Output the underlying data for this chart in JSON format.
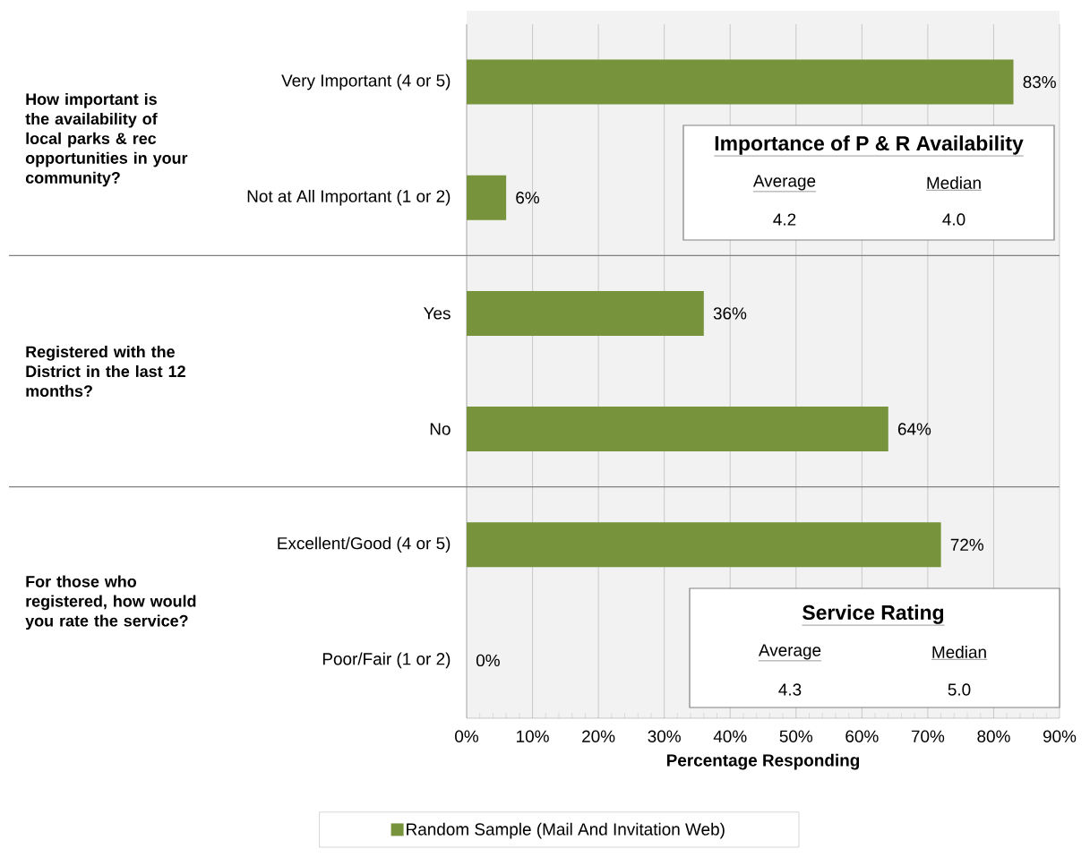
{
  "chart_data": {
    "type": "bar",
    "orientation": "horizontal",
    "categories": [
      "Very Important  (4 or 5)",
      "Not at All Important  (1 or 2)",
      "Yes",
      "No",
      "Excellent/Good (4 or 5)",
      "Poor/Fair (1 or 2)"
    ],
    "series": [
      {
        "name": "Random Sample  (Mail And Invitation  Web)",
        "color": "#77933c",
        "values": [
          83,
          6,
          36,
          64,
          72,
          0
        ],
        "value_labels": [
          "83%",
          "6%",
          "36%",
          "64%",
          "72%",
          "0%"
        ]
      }
    ],
    "xlim": [
      0,
      90
    ],
    "xticks": [
      {
        "value": 0,
        "label": "0%"
      },
      {
        "value": 10,
        "label": "10%"
      },
      {
        "value": 20,
        "label": "20%"
      },
      {
        "value": 30,
        "label": "30%"
      },
      {
        "value": 40,
        "label": "40%"
      },
      {
        "value": 50,
        "label": "50%"
      },
      {
        "value": 60,
        "label": "60%"
      },
      {
        "value": 70,
        "label": "70%"
      },
      {
        "value": 80,
        "label": "80%"
      },
      {
        "value": 90,
        "label": "90%"
      }
    ],
    "xlabel": "Percentage Responding",
    "grid": "x",
    "legend": "bottom",
    "annotations": [
      "How important is the availability  of local parks & rec opportunities in your community?",
      "Registered with the District in the last 12 months?",
      "For those who registered, how would you rate the service?",
      "Importance of P & R Availability",
      "Average",
      "Median",
      "4.2",
      "4.0",
      "Service Rating",
      "Average",
      "Median",
      "4.3",
      "5.0"
    ]
  }
}
